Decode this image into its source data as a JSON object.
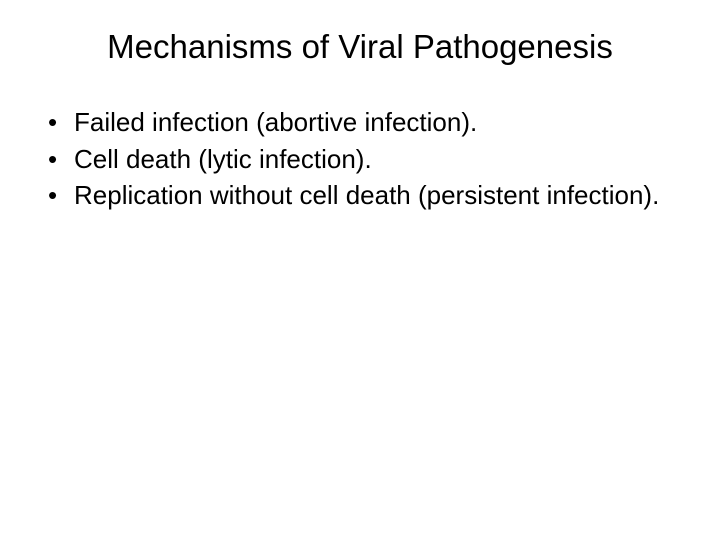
{
  "slide": {
    "title": "Mechanisms of Viral Pathogenesis",
    "bullets": [
      "Failed infection (abortive infection).",
      "Cell death (lytic infection).",
      "Replication without cell death (persistent infection)."
    ]
  },
  "styling": {
    "background_color": "#ffffff",
    "text_color": "#000000",
    "title_fontsize": 33,
    "title_fontweight": 400,
    "bullet_fontsize": 26,
    "bullet_fontweight": 400,
    "font_family": "Arial",
    "bullet_marker": "•",
    "slide_width": 720,
    "slide_height": 540
  }
}
